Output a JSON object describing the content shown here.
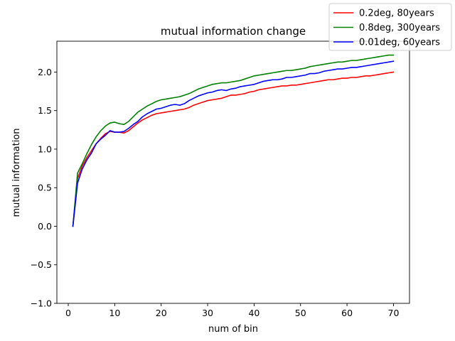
{
  "chart_data": {
    "type": "line",
    "title": "mutual information change",
    "xlabel": "num of bin",
    "ylabel": "mutual information",
    "xlim": [
      -2.45,
      73.45
    ],
    "ylim": [
      -1.0,
      2.4
    ],
    "x_ticks": [
      0,
      10,
      20,
      30,
      40,
      50,
      60,
      70
    ],
    "x_tick_labels": [
      "0",
      "10",
      "20",
      "30",
      "40",
      "50",
      "60",
      "70"
    ],
    "y_ticks": [
      -1.0,
      -0.5,
      0.0,
      0.5,
      1.0,
      1.5,
      2.0
    ],
    "y_tick_labels": [
      "−1.0",
      "−0.5",
      "0.0",
      "0.5",
      "1.0",
      "1.5",
      "2.0"
    ],
    "grid": false,
    "legend_position": "top-right",
    "x": [
      1,
      2,
      3,
      4,
      5,
      6,
      7,
      8,
      9,
      10,
      11,
      12,
      13,
      14,
      15,
      16,
      17,
      18,
      19,
      20,
      21,
      22,
      23,
      24,
      25,
      26,
      27,
      28,
      29,
      30,
      31,
      32,
      33,
      34,
      35,
      36,
      37,
      38,
      39,
      40,
      41,
      42,
      43,
      44,
      45,
      46,
      47,
      48,
      49,
      50,
      51,
      52,
      53,
      54,
      55,
      56,
      57,
      58,
      59,
      60,
      61,
      62,
      63,
      64,
      65,
      66,
      67,
      68,
      69,
      70
    ],
    "series": [
      {
        "name": "0.2deg, 80years",
        "color": "#ff0000",
        "values": [
          0.0,
          0.62,
          0.78,
          0.89,
          0.98,
          1.07,
          1.14,
          1.2,
          1.23,
          1.22,
          1.22,
          1.21,
          1.24,
          1.29,
          1.34,
          1.38,
          1.41,
          1.44,
          1.46,
          1.47,
          1.48,
          1.49,
          1.5,
          1.51,
          1.52,
          1.54,
          1.57,
          1.59,
          1.61,
          1.63,
          1.64,
          1.65,
          1.66,
          1.68,
          1.7,
          1.7,
          1.71,
          1.72,
          1.74,
          1.75,
          1.77,
          1.78,
          1.79,
          1.8,
          1.81,
          1.82,
          1.82,
          1.83,
          1.83,
          1.84,
          1.85,
          1.86,
          1.87,
          1.88,
          1.89,
          1.9,
          1.9,
          1.91,
          1.92,
          1.92,
          1.93,
          1.93,
          1.94,
          1.95,
          1.95,
          1.96,
          1.97,
          1.98,
          1.99,
          2.0
        ]
      },
      {
        "name": "0.8deg, 300years",
        "color": "#008000",
        "values": [
          0.0,
          0.69,
          0.81,
          0.94,
          1.06,
          1.16,
          1.24,
          1.3,
          1.34,
          1.35,
          1.33,
          1.32,
          1.36,
          1.42,
          1.48,
          1.52,
          1.56,
          1.59,
          1.62,
          1.64,
          1.65,
          1.66,
          1.67,
          1.68,
          1.7,
          1.72,
          1.75,
          1.78,
          1.8,
          1.82,
          1.84,
          1.85,
          1.86,
          1.86,
          1.87,
          1.88,
          1.89,
          1.91,
          1.93,
          1.95,
          1.96,
          1.97,
          1.98,
          1.99,
          2.0,
          2.01,
          2.02,
          2.02,
          2.03,
          2.04,
          2.05,
          2.07,
          2.08,
          2.09,
          2.1,
          2.11,
          2.12,
          2.13,
          2.13,
          2.14,
          2.15,
          2.15,
          2.16,
          2.17,
          2.18,
          2.19,
          2.2,
          2.21,
          2.22,
          2.22
        ]
      },
      {
        "name": "0.01deg, 60years",
        "color": "#0000ff",
        "values": [
          0.0,
          0.56,
          0.74,
          0.86,
          0.95,
          1.07,
          1.13,
          1.18,
          1.24,
          1.22,
          1.22,
          1.23,
          1.27,
          1.32,
          1.36,
          1.42,
          1.46,
          1.49,
          1.52,
          1.53,
          1.55,
          1.57,
          1.58,
          1.57,
          1.59,
          1.63,
          1.66,
          1.69,
          1.71,
          1.73,
          1.74,
          1.76,
          1.77,
          1.76,
          1.78,
          1.79,
          1.81,
          1.82,
          1.83,
          1.84,
          1.86,
          1.88,
          1.89,
          1.9,
          1.9,
          1.91,
          1.93,
          1.93,
          1.94,
          1.95,
          1.96,
          1.98,
          1.98,
          1.99,
          2.01,
          2.02,
          2.03,
          2.04,
          2.04,
          2.05,
          2.06,
          2.06,
          2.07,
          2.08,
          2.09,
          2.1,
          2.11,
          2.12,
          2.13,
          2.14
        ]
      }
    ]
  }
}
